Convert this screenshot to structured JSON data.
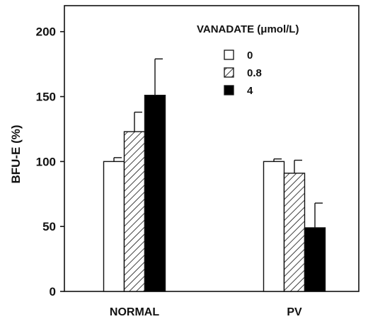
{
  "chart_data": {
    "type": "bar",
    "title": "",
    "xlabel": "",
    "ylabel": "BFU-E (%)",
    "ylim": [
      0,
      220
    ],
    "yticks": [
      0,
      50,
      100,
      150,
      200
    ],
    "grid": false,
    "categories": [
      "NORMAL",
      "PV"
    ],
    "legend": {
      "title": "VANADATE (μmol/L)",
      "placement": "top-right"
    },
    "series": [
      {
        "name": "0",
        "fill": "white",
        "values": [
          100,
          100
        ],
        "errors": [
          3,
          2
        ]
      },
      {
        "name": "0.8",
        "fill": "hatched",
        "values": [
          123,
          91
        ],
        "errors": [
          15,
          10
        ]
      },
      {
        "name": "4",
        "fill": "black",
        "values": [
          151,
          49
        ],
        "errors": [
          28,
          19
        ]
      }
    ]
  },
  "colors": {
    "stroke": "#111111",
    "solid": "#000000",
    "open": "#ffffff"
  }
}
